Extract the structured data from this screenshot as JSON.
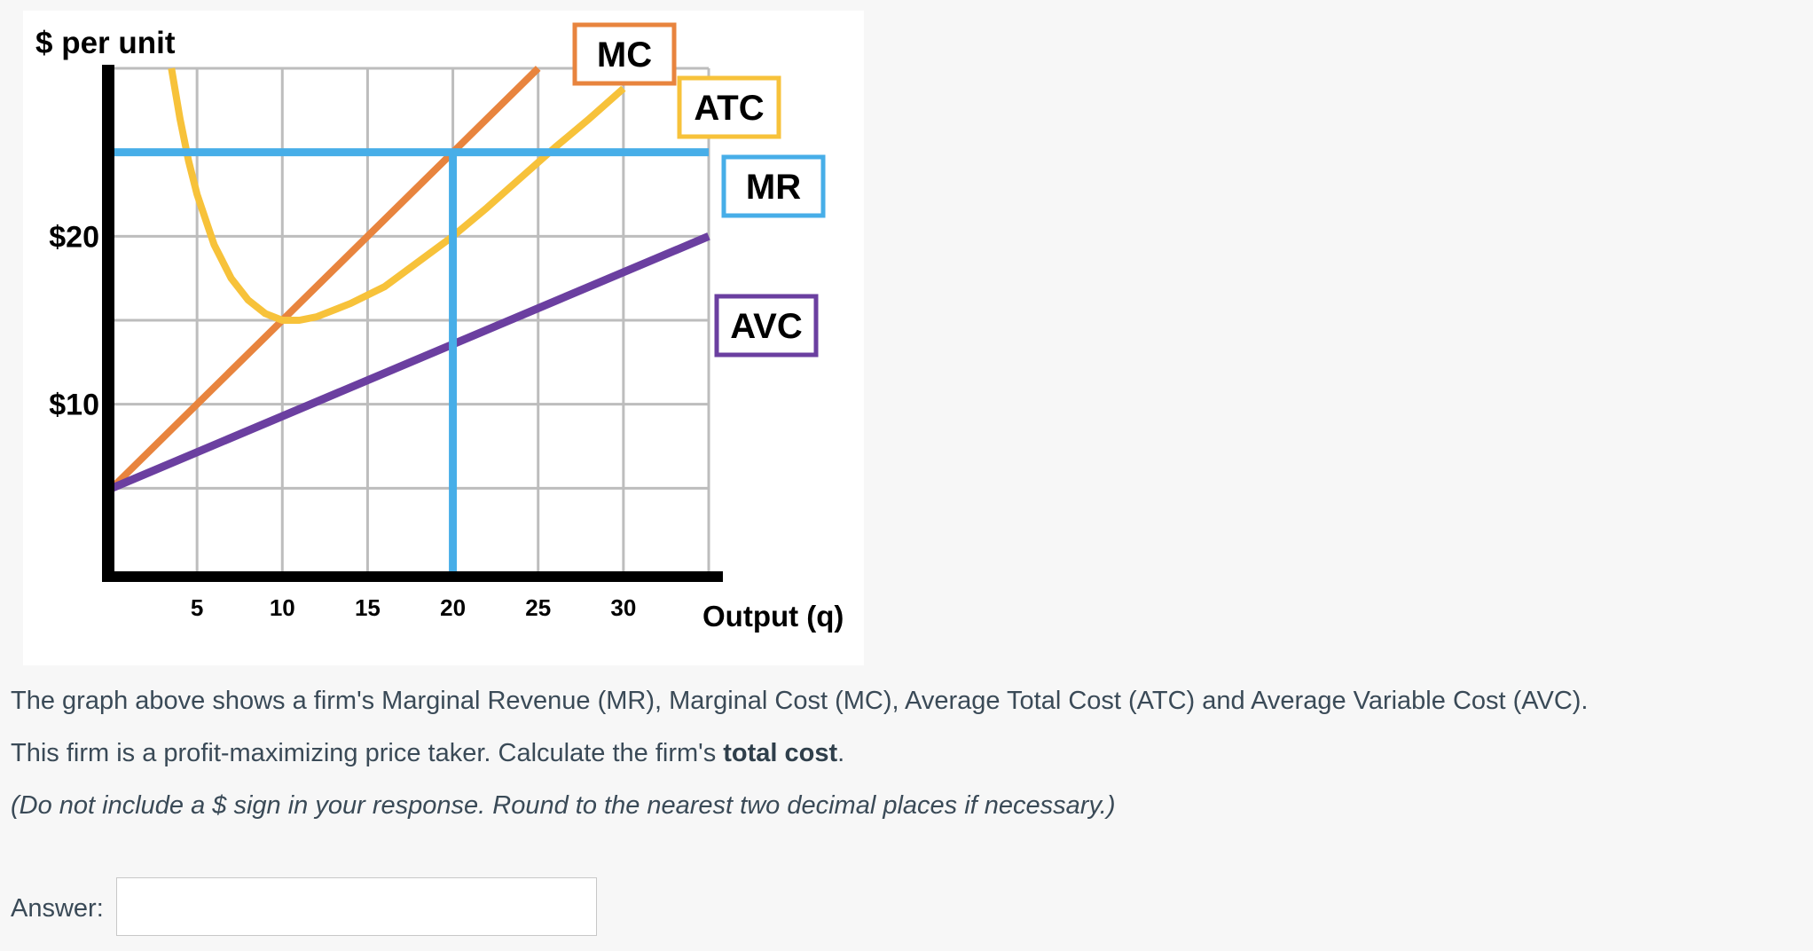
{
  "chart_data": {
    "type": "line",
    "ylabel": "$ per unit",
    "xlabel": "Output (q)",
    "x_ticks": [
      5,
      10,
      15,
      20,
      25,
      30
    ],
    "x_tick_labels": [
      "5",
      "10",
      "15",
      "20",
      "25",
      "30"
    ],
    "y_ticks": [
      10,
      20
    ],
    "y_tick_labels": [
      "$10",
      "$20"
    ],
    "xlim": [
      0,
      35
    ],
    "ylim": [
      0,
      30
    ],
    "grid": true,
    "series": [
      {
        "name": "MC",
        "color": "#e8843e",
        "x": [
          0,
          25
        ],
        "y": [
          5,
          30
        ]
      },
      {
        "name": "ATC",
        "color": "#f7c23a",
        "x": [
          3.5,
          4.0,
          4.5,
          5.0,
          6.0,
          7.0,
          8.0,
          9.0,
          10.0,
          11.0,
          12.0,
          14.0,
          16.0,
          18.0,
          20.0,
          22.0,
          24.0,
          26.0,
          28.0,
          30.0
        ],
        "y": [
          30,
          27,
          24.5,
          22.5,
          19.5,
          17.5,
          16.2,
          15.4,
          15.0,
          15.0,
          15.2,
          16.0,
          17.0,
          18.5,
          20.0,
          21.7,
          23.5,
          25.3,
          27.0,
          28.8
        ]
      },
      {
        "name": "MR",
        "color": "#47aee8",
        "x": [
          0,
          35
        ],
        "y": [
          25,
          25
        ]
      },
      {
        "name": "AVC",
        "color": "#6b3fa0",
        "x": [
          0,
          35
        ],
        "y": [
          5,
          20
        ]
      }
    ],
    "annotations": [
      {
        "type": "vertical-line",
        "x": 20,
        "y": [
          0,
          25
        ],
        "color": "#47aee8"
      }
    ],
    "legend_boxes": [
      {
        "label": "MC",
        "color": "#e8843e"
      },
      {
        "label": "ATC",
        "color": "#f7c23a"
      },
      {
        "label": "MR",
        "color": "#47aee8"
      },
      {
        "label": "AVC",
        "color": "#6b3fa0"
      }
    ]
  },
  "question": {
    "line1": "The graph above shows a firm's Marginal Revenue (MR), Marginal Cost (MC), Average Total Cost (ATC) and Average Variable Cost (AVC).",
    "line2_prefix": "This firm is a profit-maximizing price taker. Calculate the firm's ",
    "line2_bold": "total cost",
    "line2_suffix": ".",
    "line3": "(Do not include a $ sign in your response. Round to the nearest two decimal places if necessary.)"
  },
  "answer": {
    "label": "Answer:",
    "value": ""
  }
}
